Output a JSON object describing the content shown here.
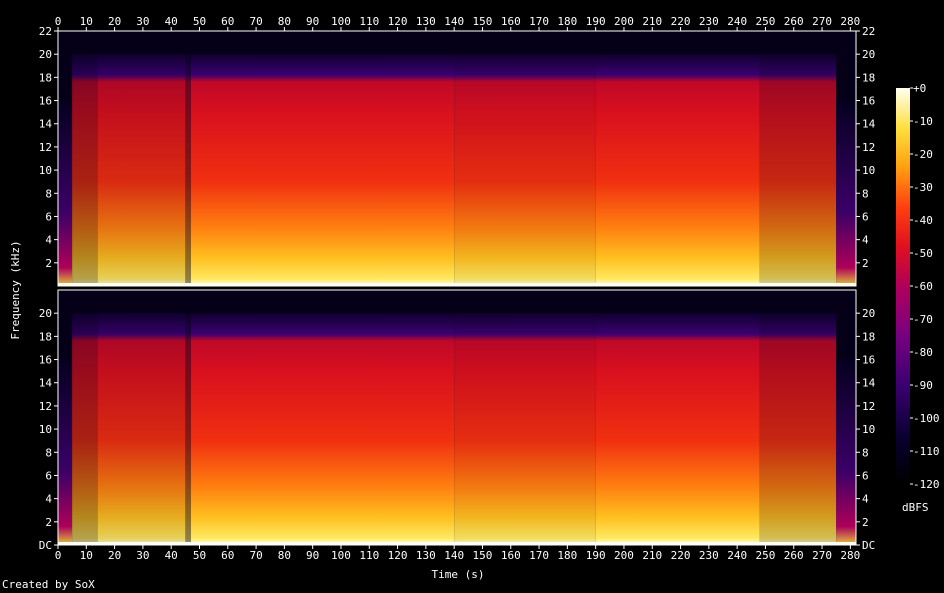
{
  "chart_data": {
    "type": "heatmap",
    "title": "",
    "xlabel": "Time (s)",
    "ylabel": "Frequency (kHz)",
    "xlim": [
      0,
      282
    ],
    "ylim": [
      0,
      22
    ],
    "x_ticks": [
      0,
      10,
      20,
      30,
      40,
      50,
      60,
      70,
      80,
      90,
      100,
      110,
      120,
      130,
      140,
      150,
      160,
      170,
      180,
      190,
      200,
      210,
      220,
      230,
      240,
      250,
      260,
      270,
      280
    ],
    "y_ticks_left_top": [
      "22",
      "20",
      "18",
      "16",
      "14",
      "12",
      "10",
      "8",
      "6",
      "4",
      "2"
    ],
    "y_ticks_right_top": [
      "22",
      "20",
      "18",
      "16",
      "14",
      "12",
      "10",
      "8",
      "6",
      "4",
      "2"
    ],
    "y_ticks_left_bottom": [
      "20",
      "18",
      "16",
      "14",
      "12",
      "10",
      "8",
      "6",
      "4",
      "2",
      "DC"
    ],
    "y_ticks_right_bottom": [
      "20",
      "18",
      "16",
      "14",
      "12",
      "10",
      "8",
      "6",
      "4",
      "2",
      "DC"
    ],
    "channels": 2,
    "colorbar": {
      "label": "dBFS",
      "min": -120,
      "max": 0,
      "ticks": [
        "+0",
        "-10",
        "-20",
        "-30",
        "-40",
        "-50",
        "-60",
        "-70",
        "-80",
        "-90",
        "-100",
        "-110",
        "-120"
      ],
      "stops": [
        "#fffff0",
        "#ffe040",
        "#ffa010",
        "#ff4010",
        "#e0101e",
        "#b0005a",
        "#7a0080",
        "#3a0070",
        "#0a0030",
        "#000000"
      ]
    },
    "segments": [
      {
        "start": 0,
        "end": 5,
        "level": -105
      },
      {
        "start": 5,
        "end": 14,
        "level": -50
      },
      {
        "start": 14,
        "end": 45,
        "level": -42
      },
      {
        "start": 45,
        "end": 47,
        "level": -60
      },
      {
        "start": 47,
        "end": 140,
        "level": -38
      },
      {
        "start": 140,
        "end": 190,
        "level": -40
      },
      {
        "start": 190,
        "end": 248,
        "level": -38
      },
      {
        "start": 248,
        "end": 275,
        "level": -45
      },
      {
        "start": 275,
        "end": 282,
        "level": -95
      }
    ],
    "cutoff_khz": 20
  },
  "credit": "Created by SoX"
}
